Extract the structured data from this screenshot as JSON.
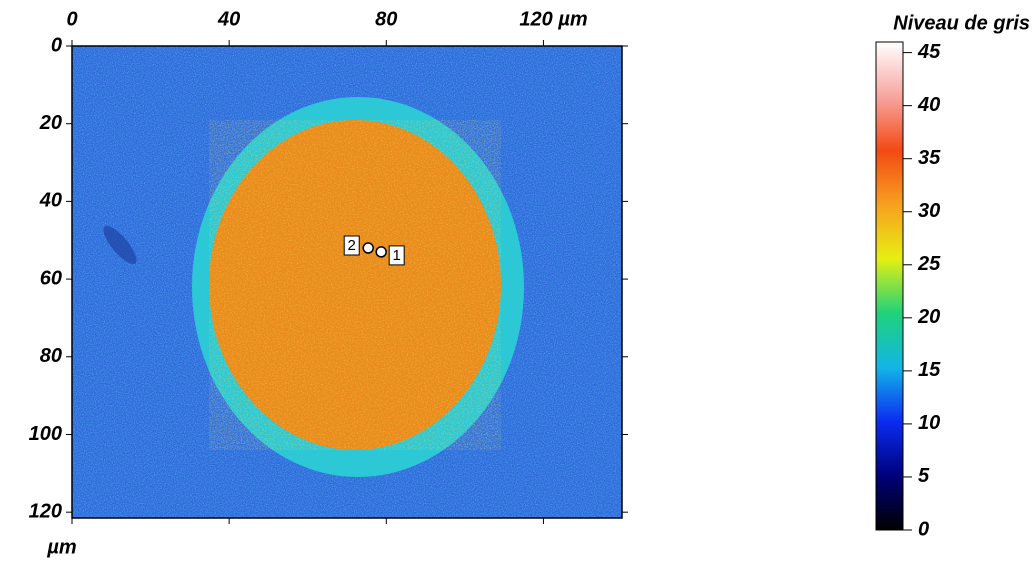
{
  "chart_data": {
    "type": "map",
    "xlim": [
      0,
      140
    ],
    "ylim": [
      0,
      121.5
    ],
    "xticks": [
      0,
      40,
      80,
      {
        "value": 120,
        "label": "120 µm"
      }
    ],
    "yticks": [
      0,
      20,
      40,
      60,
      80,
      100,
      120
    ],
    "y_label": "µm",
    "colorbar": {
      "title": "Niveau de gris",
      "zlim": [
        0,
        46
      ],
      "ticks": [
        0,
        5,
        10,
        15,
        20,
        25,
        30,
        35,
        40,
        45
      ],
      "colormap": [
        "#000000",
        "#00007a",
        "#0a2cf0",
        "#12b6e6",
        "#1fd27a",
        "#e6ef12",
        "#f7a020",
        "#f24a14",
        "#f7a6a0",
        "#ffffff"
      ]
    },
    "points": [
      {
        "label": "1",
        "x": 78.7,
        "y": 53
      },
      {
        "label": "2",
        "x": 75.4,
        "y": 52
      }
    ]
  }
}
